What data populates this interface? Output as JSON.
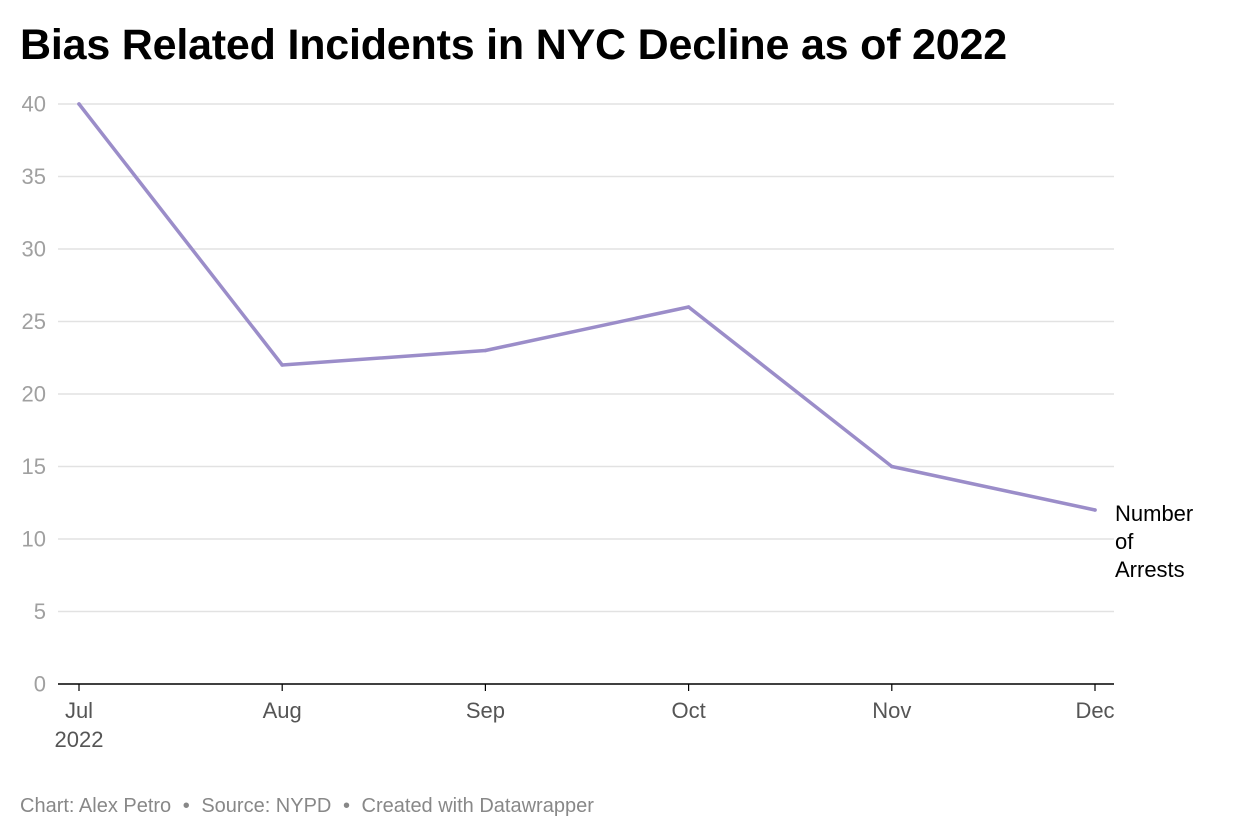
{
  "chart_data": {
    "type": "line",
    "title": "Bias Related Incidents in NYC Decline as of 2022",
    "categories": [
      "Jul",
      "Aug",
      "Sep",
      "Oct",
      "Nov",
      "Dec"
    ],
    "first_category_year": "2022",
    "series": [
      {
        "name": "Number of Arrests",
        "values": [
          40,
          22,
          23,
          26,
          15,
          12
        ],
        "color": "#9b8dc9"
      }
    ],
    "y_ticks": [
      0,
      5,
      10,
      15,
      20,
      25,
      30,
      35,
      40
    ],
    "ylim": [
      0,
      40
    ],
    "xlabel": "",
    "ylabel": "",
    "grid": true,
    "legend": "direct label at line end",
    "source": {
      "chart_author": "Chart: Alex Petro",
      "source": "Source: NYPD",
      "created_with": "Created with Datawrapper",
      "separator": "•"
    }
  }
}
